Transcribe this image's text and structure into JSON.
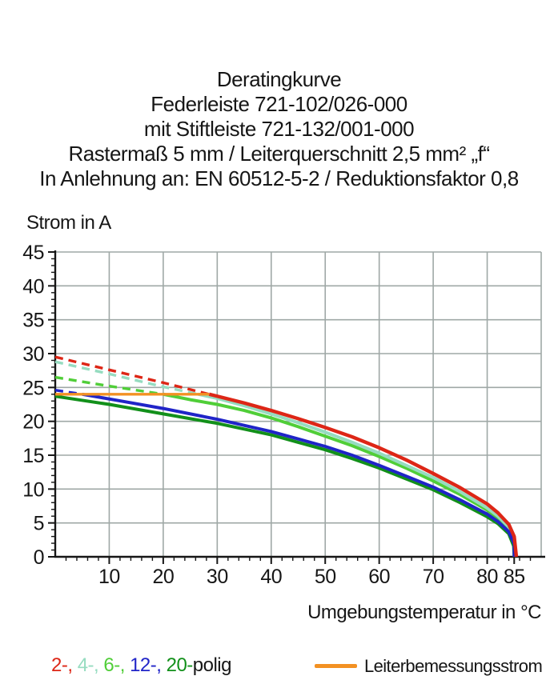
{
  "header": {
    "lines": [
      "Deratingkurve",
      "Federleiste 721-102/026-000",
      "mit Stiftleiste 721-132/001-000",
      "Rastermaß 5 mm / Leiterquerschnitt 2,5 mm² „f“",
      "In Anlehnung an: EN 60512-5-2 / Reduktionsfaktor 0,8"
    ]
  },
  "chart_data": {
    "type": "line",
    "ylabel": "Strom in A",
    "xlabel": "Umgebungstemperatur in °C",
    "xlim": [
      0,
      90
    ],
    "ylim": [
      0,
      45
    ],
    "x_major_ticks": [
      10,
      20,
      30,
      40,
      50,
      60,
      70,
      80,
      85
    ],
    "x_minor_step": 2,
    "y_major_step": 5,
    "y_minor_step": 1,
    "grid": true,
    "grid_color": "#9fa8a6",
    "axis_color": "#161616",
    "rated_current": {
      "label": "Leiterbemessungsstrom",
      "color": "#f39122",
      "value_a": 24,
      "x_start": 0,
      "x_end": 28.5
    },
    "series": [
      {
        "name": "2-polig",
        "color": "#dd2616",
        "dashed": [
          [
            0,
            29.5
          ],
          [
            10,
            27.6
          ],
          [
            20,
            25.7
          ],
          [
            28.5,
            24.0
          ]
        ],
        "solid": [
          [
            28.5,
            24.0
          ],
          [
            30,
            23.7
          ],
          [
            35,
            22.7
          ],
          [
            40,
            21.6
          ],
          [
            45,
            20.4
          ],
          [
            50,
            19.1
          ],
          [
            55,
            17.7
          ],
          [
            60,
            16.1
          ],
          [
            65,
            14.3
          ],
          [
            70,
            12.3
          ],
          [
            75,
            10.2
          ],
          [
            80,
            7.8
          ],
          [
            82,
            6.5
          ],
          [
            84,
            4.8
          ],
          [
            85,
            3.0
          ],
          [
            85.4,
            0
          ]
        ]
      },
      {
        "name": "4-polig",
        "color": "#96dcc0",
        "dashed": [
          [
            0,
            28.8
          ],
          [
            10,
            27.0
          ],
          [
            20,
            25.1
          ],
          [
            26.5,
            24.0
          ]
        ],
        "solid": [
          [
            26.5,
            24.0
          ],
          [
            30,
            23.4
          ],
          [
            35,
            22.3
          ],
          [
            40,
            21.1
          ],
          [
            45,
            19.8
          ],
          [
            50,
            18.4
          ],
          [
            55,
            16.9
          ],
          [
            60,
            15.3
          ],
          [
            65,
            13.5
          ],
          [
            70,
            11.7
          ],
          [
            75,
            9.6
          ],
          [
            80,
            7.2
          ],
          [
            82,
            6.0
          ],
          [
            84,
            4.4
          ],
          [
            85,
            2.6
          ],
          [
            85.2,
            0
          ]
        ]
      },
      {
        "name": "6-polig",
        "color": "#50ce38",
        "dashed": [
          [
            0,
            26.5
          ],
          [
            10,
            25.2
          ],
          [
            20,
            24.0
          ]
        ],
        "solid": [
          [
            20,
            24.0
          ],
          [
            25,
            23.2
          ],
          [
            30,
            22.5
          ],
          [
            35,
            21.6
          ],
          [
            40,
            20.5
          ],
          [
            45,
            19.2
          ],
          [
            50,
            17.8
          ],
          [
            55,
            16.4
          ],
          [
            60,
            14.8
          ],
          [
            65,
            13.1
          ],
          [
            70,
            11.2
          ],
          [
            75,
            9.2
          ],
          [
            80,
            6.9
          ],
          [
            82,
            5.7
          ],
          [
            84,
            4.1
          ],
          [
            85,
            2.3
          ],
          [
            85.1,
            0
          ]
        ]
      },
      {
        "name": "12-polig",
        "color": "#2024c8",
        "dashed": [
          [
            0,
            24.6
          ],
          [
            5,
            24.0
          ]
        ],
        "solid": [
          [
            5,
            24.0
          ],
          [
            10,
            23.3
          ],
          [
            20,
            21.9
          ],
          [
            30,
            20.3
          ],
          [
            40,
            18.5
          ],
          [
            45,
            17.4
          ],
          [
            50,
            16.3
          ],
          [
            55,
            15.0
          ],
          [
            60,
            13.5
          ],
          [
            65,
            11.9
          ],
          [
            70,
            10.3
          ],
          [
            75,
            8.4
          ],
          [
            80,
            6.3
          ],
          [
            82,
            5.2
          ],
          [
            84,
            3.7
          ],
          [
            85,
            1.9
          ],
          [
            85,
            0
          ]
        ]
      },
      {
        "name": "20-polig",
        "color": "#12901a",
        "dashed": [],
        "solid": [
          [
            0,
            23.7
          ],
          [
            10,
            22.5
          ],
          [
            20,
            21.1
          ],
          [
            30,
            19.7
          ],
          [
            40,
            18.0
          ],
          [
            45,
            16.9
          ],
          [
            50,
            15.8
          ],
          [
            55,
            14.5
          ],
          [
            60,
            13.1
          ],
          [
            65,
            11.5
          ],
          [
            70,
            9.9
          ],
          [
            75,
            8.0
          ],
          [
            80,
            5.9
          ],
          [
            82,
            4.9
          ],
          [
            84,
            3.4
          ],
          [
            84.9,
            1.6
          ],
          [
            85,
            0
          ]
        ]
      }
    ],
    "legend_position": "bottom"
  },
  "legend": {
    "pole_segments": [
      {
        "text": "2-, ",
        "color": "#dd2616"
      },
      {
        "text": "4-, ",
        "color": "#96dcc0"
      },
      {
        "text": "6-, ",
        "color": "#50ce38"
      },
      {
        "text": "12-, ",
        "color": "#2024c8"
      },
      {
        "text": "20-",
        "color": "#12901a"
      },
      {
        "text": "polig",
        "color": "#161616"
      }
    ]
  }
}
